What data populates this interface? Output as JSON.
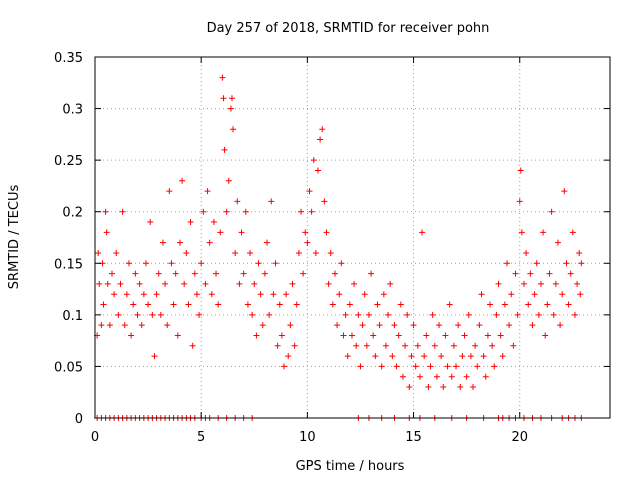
{
  "chart_data": {
    "type": "scatter",
    "title": "Day 257 of 2018, SRMTID for receiver pohn",
    "xlabel": "GPS time / hours",
    "ylabel": "SRMTID / TECUs",
    "xlim": [
      0,
      24.25
    ],
    "ylim": [
      0,
      0.35
    ],
    "x_ticks": [
      0,
      5,
      10,
      15,
      20
    ],
    "x_tick_labels": [
      "0",
      "5",
      "10",
      "15",
      "20"
    ],
    "y_ticks": [
      0,
      0.05,
      0.1,
      0.15,
      0.2,
      0.25,
      0.3,
      0.35
    ],
    "y_tick_labels": [
      "0",
      "0.05",
      "0.1",
      "0.15",
      "0.2",
      "0.25",
      "0.3",
      "0.35"
    ],
    "grid": true,
    "marker": "+",
    "color": "#ff0000",
    "series": [
      {
        "name": "SRMTID",
        "points": [
          [
            0.1,
            0.08
          ],
          [
            0.15,
            0.16
          ],
          [
            0.2,
            0.13
          ],
          [
            0.3,
            0.09
          ],
          [
            0.35,
            0.15
          ],
          [
            0.4,
            0.11
          ],
          [
            0.5,
            0.2
          ],
          [
            0.55,
            0.18
          ],
          [
            0.6,
            0.13
          ],
          [
            0.7,
            0.09
          ],
          [
            0.8,
            0.14
          ],
          [
            0.9,
            0.12
          ],
          [
            1.0,
            0.16
          ],
          [
            1.1,
            0.1
          ],
          [
            1.2,
            0.13
          ],
          [
            1.3,
            0.2
          ],
          [
            1.4,
            0.09
          ],
          [
            1.5,
            0.12
          ],
          [
            1.6,
            0.15
          ],
          [
            1.7,
            0.08
          ],
          [
            1.8,
            0.11
          ],
          [
            1.9,
            0.14
          ],
          [
            2.0,
            0.1
          ],
          [
            2.1,
            0.13
          ],
          [
            2.2,
            0.09
          ],
          [
            2.3,
            0.12
          ],
          [
            2.4,
            0.15
          ],
          [
            2.5,
            0.11
          ],
          [
            2.6,
            0.19
          ],
          [
            2.7,
            0.1
          ],
          [
            2.8,
            0.06
          ],
          [
            2.9,
            0.12
          ],
          [
            3.0,
            0.14
          ],
          [
            3.1,
            0.1
          ],
          [
            3.2,
            0.17
          ],
          [
            3.3,
            0.13
          ],
          [
            3.4,
            0.09
          ],
          [
            3.5,
            0.22
          ],
          [
            3.6,
            0.15
          ],
          [
            3.7,
            0.11
          ],
          [
            3.8,
            0.14
          ],
          [
            3.9,
            0.08
          ],
          [
            4.0,
            0.17
          ],
          [
            4.1,
            0.23
          ],
          [
            4.2,
            0.13
          ],
          [
            4.3,
            0.16
          ],
          [
            4.4,
            0.11
          ],
          [
            4.5,
            0.19
          ],
          [
            4.6,
            0.07
          ],
          [
            4.7,
            0.14
          ],
          [
            4.8,
            0.12
          ],
          [
            4.9,
            0.1
          ],
          [
            5.0,
            0.15
          ],
          [
            5.1,
            0.2
          ],
          [
            5.2,
            0.13
          ],
          [
            5.3,
            0.22
          ],
          [
            5.4,
            0.17
          ],
          [
            5.5,
            0.12
          ],
          [
            5.6,
            0.19
          ],
          [
            5.7,
            0.14
          ],
          [
            5.8,
            0.11
          ],
          [
            5.9,
            0.18
          ],
          [
            6.0,
            0.33
          ],
          [
            6.05,
            0.31
          ],
          [
            6.1,
            0.26
          ],
          [
            6.2,
            0.2
          ],
          [
            6.3,
            0.23
          ],
          [
            6.4,
            0.3
          ],
          [
            6.45,
            0.31
          ],
          [
            6.5,
            0.28
          ],
          [
            6.6,
            0.16
          ],
          [
            6.7,
            0.21
          ],
          [
            6.8,
            0.13
          ],
          [
            6.9,
            0.18
          ],
          [
            7.0,
            0.14
          ],
          [
            7.1,
            0.2
          ],
          [
            7.2,
            0.11
          ],
          [
            7.3,
            0.16
          ],
          [
            7.4,
            0.1
          ],
          [
            7.5,
            0.13
          ],
          [
            7.6,
            0.08
          ],
          [
            7.7,
            0.15
          ],
          [
            7.8,
            0.12
          ],
          [
            7.9,
            0.09
          ],
          [
            8.0,
            0.14
          ],
          [
            8.1,
            0.17
          ],
          [
            8.2,
            0.1
          ],
          [
            8.3,
            0.21
          ],
          [
            8.4,
            0.12
          ],
          [
            8.5,
            0.15
          ],
          [
            8.6,
            0.07
          ],
          [
            8.7,
            0.11
          ],
          [
            8.8,
            0.08
          ],
          [
            8.9,
            0.05
          ],
          [
            9.0,
            0.12
          ],
          [
            9.1,
            0.06
          ],
          [
            9.2,
            0.09
          ],
          [
            9.3,
            0.13
          ],
          [
            9.4,
            0.07
          ],
          [
            9.5,
            0.11
          ],
          [
            9.6,
            0.16
          ],
          [
            9.7,
            0.2
          ],
          [
            9.8,
            0.14
          ],
          [
            9.9,
            0.18
          ],
          [
            10.0,
            0.17
          ],
          [
            10.1,
            0.22
          ],
          [
            10.2,
            0.2
          ],
          [
            10.3,
            0.25
          ],
          [
            10.4,
            0.16
          ],
          [
            10.5,
            0.24
          ],
          [
            10.6,
            0.27
          ],
          [
            10.7,
            0.28
          ],
          [
            10.8,
            0.21
          ],
          [
            10.9,
            0.18
          ],
          [
            11.0,
            0.13
          ],
          [
            11.1,
            0.16
          ],
          [
            11.2,
            0.11
          ],
          [
            11.3,
            0.14
          ],
          [
            11.4,
            0.09
          ],
          [
            11.5,
            0.12
          ],
          [
            11.6,
            0.15
          ],
          [
            11.7,
            0.08
          ],
          [
            11.8,
            0.1
          ],
          [
            11.9,
            0.06
          ],
          [
            12.0,
            0.11
          ],
          [
            12.1,
            0.08
          ],
          [
            12.2,
            0.13
          ],
          [
            12.3,
            0.07
          ],
          [
            12.4,
            0.1
          ],
          [
            12.5,
            0.05
          ],
          [
            12.6,
            0.09
          ],
          [
            12.7,
            0.12
          ],
          [
            12.8,
            0.07
          ],
          [
            12.9,
            0.1
          ],
          [
            13.0,
            0.14
          ],
          [
            13.1,
            0.08
          ],
          [
            13.2,
            0.06
          ],
          [
            13.3,
            0.11
          ],
          [
            13.4,
            0.09
          ],
          [
            13.5,
            0.05
          ],
          [
            13.6,
            0.12
          ],
          [
            13.7,
            0.07
          ],
          [
            13.8,
            0.1
          ],
          [
            13.9,
            0.13
          ],
          [
            14.0,
            0.06
          ],
          [
            14.1,
            0.09
          ],
          [
            14.2,
            0.05
          ],
          [
            14.3,
            0.08
          ],
          [
            14.4,
            0.11
          ],
          [
            14.5,
            0.04
          ],
          [
            14.6,
            0.07
          ],
          [
            14.7,
            0.1
          ],
          [
            14.8,
            0.03
          ],
          [
            14.9,
            0.06
          ],
          [
            15.0,
            0.09
          ],
          [
            15.1,
            0.05
          ],
          [
            15.2,
            0.07
          ],
          [
            15.3,
            0.04
          ],
          [
            15.4,
            0.18
          ],
          [
            15.5,
            0.06
          ],
          [
            15.6,
            0.08
          ],
          [
            15.7,
            0.03
          ],
          [
            15.8,
            0.05
          ],
          [
            15.9,
            0.1
          ],
          [
            16.0,
            0.07
          ],
          [
            16.1,
            0.04
          ],
          [
            16.2,
            0.09
          ],
          [
            16.3,
            0.06
          ],
          [
            16.4,
            0.03
          ],
          [
            16.5,
            0.08
          ],
          [
            16.6,
            0.05
          ],
          [
            16.7,
            0.11
          ],
          [
            16.8,
            0.04
          ],
          [
            16.9,
            0.07
          ],
          [
            17.0,
            0.05
          ],
          [
            17.1,
            0.09
          ],
          [
            17.2,
            0.03
          ],
          [
            17.3,
            0.06
          ],
          [
            17.4,
            0.08
          ],
          [
            17.5,
            0.04
          ],
          [
            17.6,
            0.1
          ],
          [
            17.7,
            0.06
          ],
          [
            17.8,
            0.03
          ],
          [
            17.9,
            0.07
          ],
          [
            18.0,
            0.05
          ],
          [
            18.1,
            0.09
          ],
          [
            18.2,
            0.12
          ],
          [
            18.3,
            0.06
          ],
          [
            18.4,
            0.04
          ],
          [
            18.5,
            0.08
          ],
          [
            18.6,
            0.11
          ],
          [
            18.7,
            0.07
          ],
          [
            18.8,
            0.05
          ],
          [
            18.9,
            0.1
          ],
          [
            19.0,
            0.13
          ],
          [
            19.1,
            0.08
          ],
          [
            19.2,
            0.06
          ],
          [
            19.3,
            0.11
          ],
          [
            19.4,
            0.15
          ],
          [
            19.5,
            0.09
          ],
          [
            19.6,
            0.12
          ],
          [
            19.7,
            0.07
          ],
          [
            19.8,
            0.14
          ],
          [
            19.9,
            0.1
          ],
          [
            20.0,
            0.21
          ],
          [
            20.05,
            0.24
          ],
          [
            20.1,
            0.18
          ],
          [
            20.2,
            0.13
          ],
          [
            20.3,
            0.16
          ],
          [
            20.4,
            0.11
          ],
          [
            20.5,
            0.14
          ],
          [
            20.6,
            0.09
          ],
          [
            20.7,
            0.12
          ],
          [
            20.8,
            0.15
          ],
          [
            20.9,
            0.1
          ],
          [
            21.0,
            0.13
          ],
          [
            21.1,
            0.18
          ],
          [
            21.2,
            0.08
          ],
          [
            21.3,
            0.11
          ],
          [
            21.4,
            0.14
          ],
          [
            21.5,
            0.2
          ],
          [
            21.6,
            0.1
          ],
          [
            21.7,
            0.13
          ],
          [
            21.8,
            0.17
          ],
          [
            21.9,
            0.09
          ],
          [
            22.0,
            0.12
          ],
          [
            22.1,
            0.22
          ],
          [
            22.2,
            0.15
          ],
          [
            22.3,
            0.11
          ],
          [
            22.4,
            0.14
          ],
          [
            22.5,
            0.18
          ],
          [
            22.6,
            0.1
          ],
          [
            22.7,
            0.13
          ],
          [
            22.8,
            0.16
          ],
          [
            22.85,
            0.12
          ],
          [
            22.9,
            0.15
          ]
        ]
      }
    ],
    "zero_points_x": [
      0.1,
      0.3,
      0.5,
      0.7,
      0.9,
      1.1,
      1.3,
      1.5,
      1.7,
      1.9,
      2.1,
      2.3,
      2.5,
      2.7,
      2.9,
      3.1,
      3.3,
      3.5,
      3.7,
      3.9,
      4.1,
      4.3,
      4.5,
      4.7,
      5.0,
      5.2,
      5.4,
      5.8,
      6.2,
      6.6,
      7.0,
      7.4,
      12.4,
      12.9,
      13.5,
      14.1,
      14.8,
      15.3,
      16.0,
      16.8,
      17.5,
      18.3,
      19.0,
      19.2,
      19.5,
      19.8,
      20.2,
      20.6,
      21.0,
      21.5,
      22.0,
      22.3,
      22.6,
      22.9
    ]
  }
}
